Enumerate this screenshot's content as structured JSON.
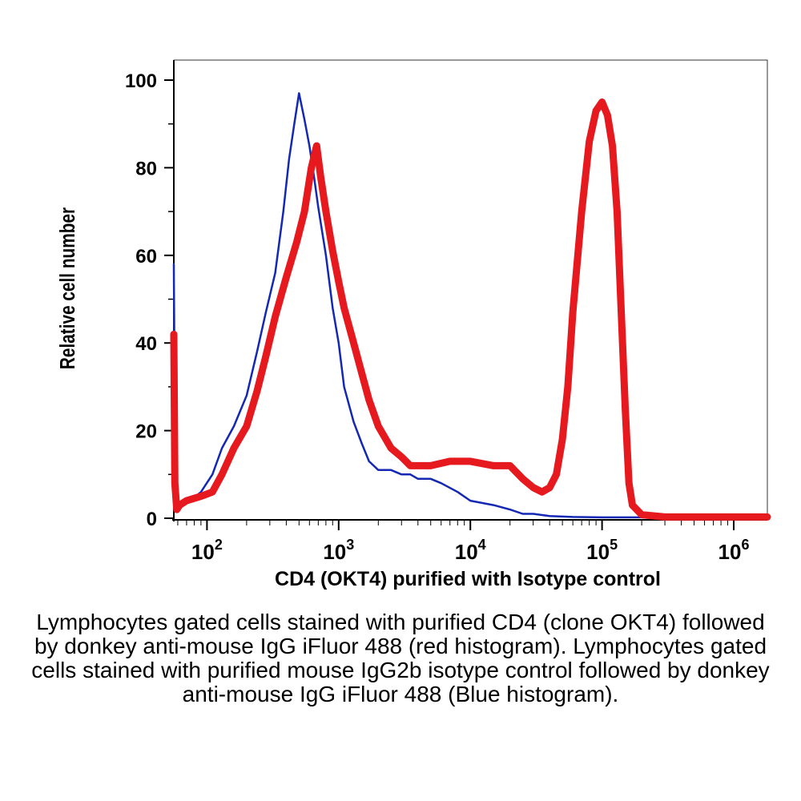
{
  "chart_data": {
    "type": "line",
    "xlabel": "CD4 (OKT4) purified with Isotype control",
    "ylabel": "Relative cell number",
    "x_scale": "log",
    "xlim": [
      56,
      1800000
    ],
    "ylim": [
      0,
      100
    ],
    "x_tick_labels": [
      {
        "base": "10",
        "exp": "2",
        "value": 100
      },
      {
        "base": "10",
        "exp": "3",
        "value": 1000
      },
      {
        "base": "10",
        "exp": "4",
        "value": 10000
      },
      {
        "base": "10",
        "exp": "5",
        "value": 100000
      },
      {
        "base": "10",
        "exp": "6",
        "value": 1000000
      }
    ],
    "y_tick_labels": [
      {
        "label": "0",
        "value": 0
      },
      {
        "label": "20",
        "value": 20
      },
      {
        "label": "40",
        "value": 40
      },
      {
        "label": "60",
        "value": 60
      },
      {
        "label": "80",
        "value": 80
      },
      {
        "label": "100",
        "value": 100
      }
    ],
    "series": [
      {
        "color": "#1428b4",
        "points": [
          [
            56,
            58
          ],
          [
            57,
            20
          ],
          [
            58,
            6
          ],
          [
            60,
            3
          ],
          [
            65,
            3
          ],
          [
            75,
            4
          ],
          [
            90,
            6
          ],
          [
            110,
            10
          ],
          [
            130,
            16
          ],
          [
            160,
            21
          ],
          [
            200,
            28
          ],
          [
            240,
            38
          ],
          [
            280,
            47
          ],
          [
            330,
            56
          ],
          [
            380,
            70
          ],
          [
            420,
            82
          ],
          [
            460,
            90
          ],
          [
            500,
            97
          ],
          [
            550,
            91
          ],
          [
            600,
            85
          ],
          [
            650,
            78
          ],
          [
            700,
            71
          ],
          [
            800,
            60
          ],
          [
            900,
            48
          ],
          [
            1000,
            40
          ],
          [
            1100,
            30
          ],
          [
            1300,
            22
          ],
          [
            1500,
            17
          ],
          [
            1700,
            13
          ],
          [
            2000,
            11
          ],
          [
            2500,
            11
          ],
          [
            3000,
            10
          ],
          [
            3500,
            10
          ],
          [
            4000,
            9
          ],
          [
            5000,
            9
          ],
          [
            6000,
            8
          ],
          [
            8000,
            6
          ],
          [
            10000,
            4
          ],
          [
            15000,
            3
          ],
          [
            20000,
            2
          ],
          [
            25000,
            1
          ],
          [
            30000,
            1
          ],
          [
            40000,
            0.5
          ],
          [
            60000,
            0.3
          ],
          [
            100000,
            0.2
          ],
          [
            1800000,
            0.2
          ]
        ]
      },
      {
        "color": "#e6191e",
        "points": [
          [
            56,
            42
          ],
          [
            57,
            8
          ],
          [
            59,
            2
          ],
          [
            62,
            3
          ],
          [
            70,
            4
          ],
          [
            90,
            5
          ],
          [
            110,
            6
          ],
          [
            130,
            10
          ],
          [
            160,
            16
          ],
          [
            200,
            21
          ],
          [
            240,
            29
          ],
          [
            280,
            37
          ],
          [
            330,
            46
          ],
          [
            400,
            55
          ],
          [
            480,
            63
          ],
          [
            550,
            70
          ],
          [
            620,
            80
          ],
          [
            680,
            85
          ],
          [
            730,
            78
          ],
          [
            800,
            70
          ],
          [
            900,
            61
          ],
          [
            1000,
            54
          ],
          [
            1100,
            48
          ],
          [
            1300,
            40
          ],
          [
            1500,
            33
          ],
          [
            1700,
            27
          ],
          [
            2000,
            21
          ],
          [
            2500,
            16
          ],
          [
            3000,
            14
          ],
          [
            3500,
            12
          ],
          [
            5000,
            12
          ],
          [
            7000,
            13
          ],
          [
            10000,
            13
          ],
          [
            15000,
            12
          ],
          [
            20000,
            12
          ],
          [
            25000,
            9
          ],
          [
            30000,
            7
          ],
          [
            35000,
            6
          ],
          [
            40000,
            7
          ],
          [
            45000,
            10
          ],
          [
            50000,
            18
          ],
          [
            55000,
            30
          ],
          [
            60000,
            47
          ],
          [
            70000,
            70
          ],
          [
            80000,
            86
          ],
          [
            90000,
            93
          ],
          [
            100000,
            95
          ],
          [
            110000,
            92
          ],
          [
            120000,
            85
          ],
          [
            130000,
            70
          ],
          [
            140000,
            47
          ],
          [
            150000,
            25
          ],
          [
            160000,
            8
          ],
          [
            170000,
            3
          ],
          [
            200000,
            0.8
          ],
          [
            300000,
            0.3
          ],
          [
            1800000,
            0.3
          ]
        ]
      }
    ]
  },
  "caption": "Lymphocytes gated cells stained with purified CD4 (clone OKT4) followed by donkey anti-mouse IgG iFluor 488 (red histogram). Lymphocytes gated cells stained with purified mouse IgG2b isotype control followed by donkey anti-mouse IgG iFluor 488 (Blue histogram)."
}
